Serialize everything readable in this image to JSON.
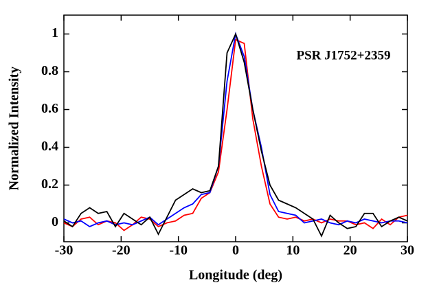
{
  "chart_data": {
    "type": "line",
    "xlabel": "Longitude (deg)",
    "ylabel": "Normalized Intensity",
    "annotation": "PSR J1752+2359",
    "x": [
      -30,
      -28.5,
      -27,
      -25.5,
      -24,
      -22.5,
      -21,
      -19.5,
      -18,
      -16.5,
      -15,
      -13.5,
      -12,
      -10.5,
      -9,
      -7.5,
      -6,
      -4.5,
      -3,
      -1.5,
      0,
      1.5,
      3,
      4.5,
      6,
      7.5,
      9,
      10.5,
      12,
      13.5,
      15,
      16.5,
      18,
      19.5,
      21,
      22.5,
      24,
      25.5,
      27,
      28.5,
      30
    ],
    "series": [
      {
        "color": "#ff0000",
        "values": [
          0.0,
          -0.02,
          0.02,
          0.03,
          -0.01,
          0.01,
          0.0,
          -0.04,
          -0.01,
          0.03,
          0.02,
          -0.02,
          0.0,
          0.01,
          0.04,
          0.05,
          0.13,
          0.16,
          0.27,
          0.6,
          0.97,
          0.95,
          0.55,
          0.3,
          0.1,
          0.03,
          0.02,
          0.03,
          0.01,
          0.02,
          0.0,
          0.02,
          0.01,
          0.01,
          -0.01,
          0.0,
          -0.03,
          0.02,
          -0.01,
          0.03,
          0.04
        ]
      },
      {
        "color": "#0000ff",
        "values": [
          0.02,
          0.0,
          0.01,
          -0.02,
          0.0,
          0.01,
          -0.01,
          0.0,
          -0.01,
          0.01,
          0.03,
          -0.01,
          0.02,
          0.05,
          0.08,
          0.1,
          0.15,
          0.16,
          0.3,
          0.75,
          1.0,
          0.88,
          0.6,
          0.4,
          0.15,
          0.06,
          0.05,
          0.04,
          0.0,
          0.01,
          0.02,
          0.0,
          -0.01,
          0.01,
          0.0,
          0.02,
          0.01,
          0.0,
          0.01,
          0.01,
          0.0
        ]
      },
      {
        "color": "#000000",
        "values": [
          0.01,
          -0.02,
          0.05,
          0.08,
          0.05,
          0.06,
          -0.02,
          0.05,
          0.02,
          -0.01,
          0.03,
          -0.06,
          0.03,
          0.12,
          0.15,
          0.18,
          0.16,
          0.17,
          0.3,
          0.9,
          1.0,
          0.85,
          0.6,
          0.38,
          0.2,
          0.12,
          0.1,
          0.08,
          0.05,
          0.02,
          -0.07,
          0.04,
          0.0,
          -0.03,
          -0.02,
          0.05,
          0.05,
          -0.02,
          0.01,
          0.03,
          0.01
        ]
      }
    ],
    "xlim": [
      -30,
      30
    ],
    "ylim": [
      -0.1,
      1.1
    ],
    "xticks": [
      -30,
      -20,
      -10,
      0,
      10,
      20,
      30
    ],
    "yticks": [
      0,
      0.2,
      0.4,
      0.6,
      0.8,
      1
    ]
  }
}
